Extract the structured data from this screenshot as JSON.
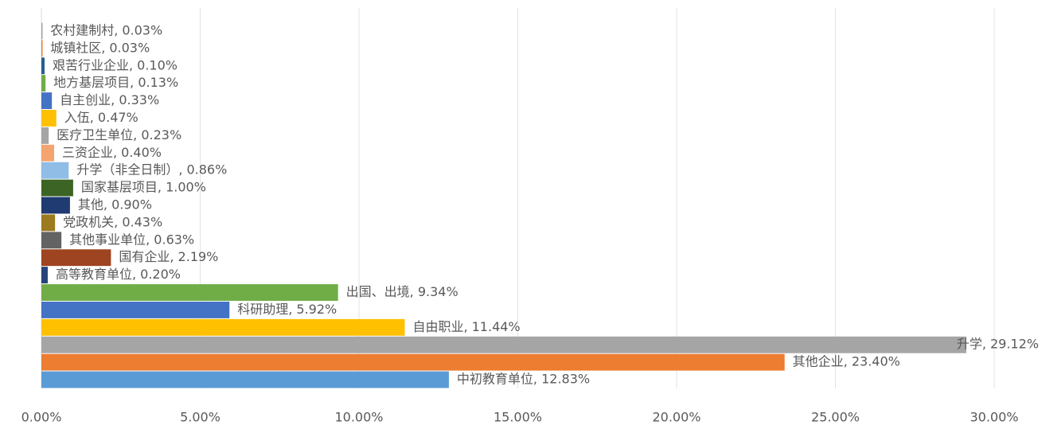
{
  "chart_data": {
    "type": "barh",
    "values": [
      0.03,
      0.03,
      0.1,
      0.13,
      0.33,
      0.47,
      0.23,
      0.4,
      0.86,
      1.0,
      0.9,
      0.43,
      0.63,
      2.19,
      0.2,
      9.34,
      5.92,
      11.44,
      29.12,
      23.4,
      12.83
    ],
    "value_labels": [
      "农村建制村, 0.03%",
      "城镇社区, 0.03%",
      "艰苦行业企业, 0.10%",
      "地方基层项目, 0.13%",
      "自主创业, 0.33%",
      "入伍, 0.47%",
      "医疗卫生单位, 0.23%",
      "三资企业, 0.40%",
      "升学（非全日制）, 0.86%",
      "国家基层项目, 1.00%",
      "其他, 0.90%",
      "党政机关, 0.43%",
      "其他事业单位, 0.63%",
      "国有企业, 2.19%",
      "高等教育单位, 0.20%",
      "出国、出境, 9.34%",
      "科研助理, 5.92%",
      "自由职业, 11.44%",
      "升学, 29.12%",
      "其他企业, 23.40%",
      "中初教育单位, 12.83%"
    ],
    "colors": [
      "#a5a5a5",
      "#ed7d31",
      "#255e91",
      "#70ad47",
      "#4472c4",
      "#ffc000",
      "#a5a5a5",
      "#f4a46e",
      "#8fbde6",
      "#3b6425",
      "#203a72",
      "#9c7a1f",
      "#636363",
      "#9e4420",
      "#264478",
      "#70ad47",
      "#4472c4",
      "#ffc000",
      "#a5a5a5",
      "#ed7d31",
      "#5b9bd5"
    ],
    "xlim": [
      0,
      30
    ],
    "xticks": [
      {
        "value": 0,
        "label": "0.00%"
      },
      {
        "value": 5,
        "label": "5.00%"
      },
      {
        "value": 10,
        "label": "10.00%"
      },
      {
        "value": 15,
        "label": "15.00%"
      },
      {
        "value": 20,
        "label": "20.00%"
      },
      {
        "value": 25,
        "label": "25.00%"
      },
      {
        "value": 30,
        "label": "30.00%"
      }
    ],
    "grid": true
  }
}
